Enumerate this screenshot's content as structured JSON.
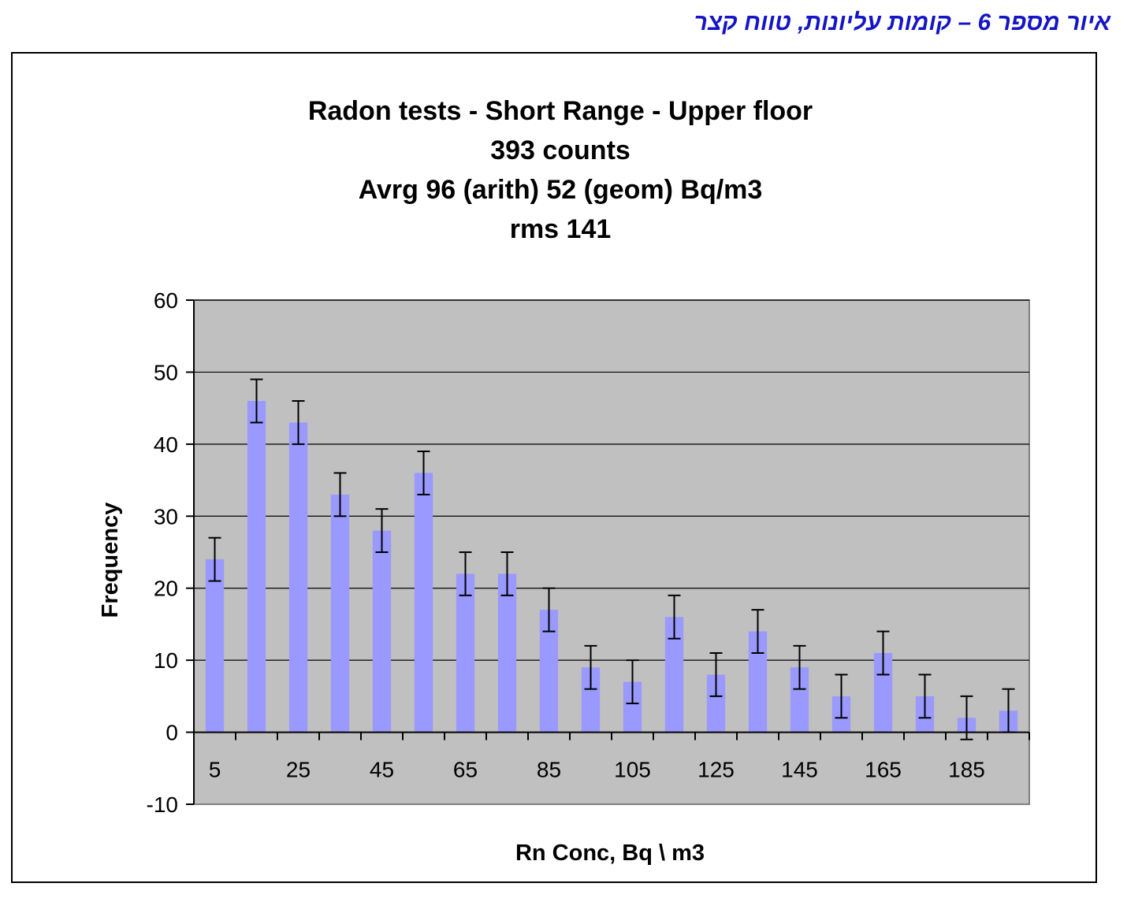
{
  "caption": "איור מספר 6 – קומות עליונות, טווח קצר",
  "chart_data": {
    "type": "bar",
    "title": [
      "Radon tests - Short Range - Upper floor",
      "393 counts",
      "Avrg 96 (arith) 52 (geom)  Bq/m3",
      "rms 141"
    ],
    "xlabel": "Rn Conc, Bq \\ m3",
    "ylabel": "Frequency",
    "ylim": [
      -10,
      60
    ],
    "yticks": [
      -10,
      0,
      10,
      20,
      30,
      40,
      50,
      60
    ],
    "categories": [
      5,
      15,
      25,
      35,
      45,
      55,
      65,
      75,
      85,
      95,
      105,
      115,
      125,
      135,
      145,
      155,
      165,
      175,
      185,
      195
    ],
    "x_tick_labels": [
      "5",
      "25",
      "45",
      "65",
      "85",
      "105",
      "125",
      "145",
      "165",
      "185"
    ],
    "values": [
      24,
      46,
      43,
      33,
      28,
      36,
      22,
      22,
      17,
      9,
      7,
      16,
      8,
      14,
      9,
      5,
      11,
      5,
      2,
      3
    ],
    "error": 3,
    "grid": true,
    "colors": {
      "bar": "#9999ff",
      "plot_bg": "#c0c0c0",
      "error_bar": "#000000"
    }
  }
}
